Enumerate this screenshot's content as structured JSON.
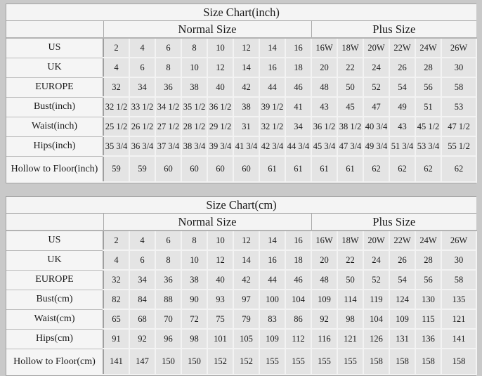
{
  "page_background": "#c9c9c9",
  "colors": {
    "label_cell_bg": "#f5f5f5",
    "data_cell_bg": "#e4e4e4",
    "grid_light": "#f3f3f3",
    "grid_gray": "#a9a9a9",
    "text": "#1a1a1a"
  },
  "chart_data": [
    {
      "type": "table",
      "title": "Size Chart(inch)",
      "group_headers": [
        {
          "label": "Normal Size",
          "span": 8
        },
        {
          "label": "Plus Size",
          "span": 6
        }
      ],
      "rows": [
        {
          "label": "US",
          "values": [
            "2",
            "4",
            "6",
            "8",
            "10",
            "12",
            "14",
            "16",
            "16W",
            "18W",
            "20W",
            "22W",
            "24W",
            "26W"
          ]
        },
        {
          "label": "UK",
          "values": [
            "4",
            "6",
            "8",
            "10",
            "12",
            "14",
            "16",
            "18",
            "20",
            "22",
            "24",
            "26",
            "28",
            "30"
          ]
        },
        {
          "label": "EUROPE",
          "values": [
            "32",
            "34",
            "36",
            "38",
            "40",
            "42",
            "44",
            "46",
            "48",
            "50",
            "52",
            "54",
            "56",
            "58"
          ]
        },
        {
          "label": "Bust(inch)",
          "values": [
            "32 1/2",
            "33 1/2",
            "34 1/2",
            "35 1/2",
            "36 1/2",
            "38",
            "39 1/2",
            "41",
            "43",
            "45",
            "47",
            "49",
            "51",
            "53"
          ]
        },
        {
          "label": "Waist(inch)",
          "values": [
            "25 1/2",
            "26 1/2",
            "27 1/2",
            "28 1/2",
            "29 1/2",
            "31",
            "32 1/2",
            "34",
            "36 1/2",
            "38 1/2",
            "40 3/4",
            "43",
            "45 1/2",
            "47 1/2"
          ]
        },
        {
          "label": "Hips(inch)",
          "values": [
            "35 3/4",
            "36 3/4",
            "37 3/4",
            "38 3/4",
            "39 3/4",
            "41 3/4",
            "42 3/4",
            "44 3/4",
            "45 3/4",
            "47 3/4",
            "49 3/4",
            "51 3/4",
            "53 3/4",
            "55 1/2"
          ]
        },
        {
          "label": "Hollow to Floor(inch)",
          "values": [
            "59",
            "59",
            "60",
            "60",
            "60",
            "60",
            "61",
            "61",
            "61",
            "61",
            "62",
            "62",
            "62",
            "62"
          ]
        }
      ]
    },
    {
      "type": "table",
      "title": "Size Chart(cm)",
      "group_headers": [
        {
          "label": "Normal Size",
          "span": 8
        },
        {
          "label": "Plus Size",
          "span": 6
        }
      ],
      "rows": [
        {
          "label": "US",
          "values": [
            "2",
            "4",
            "6",
            "8",
            "10",
            "12",
            "14",
            "16",
            "16W",
            "18W",
            "20W",
            "22W",
            "24W",
            "26W"
          ]
        },
        {
          "label": "UK",
          "values": [
            "4",
            "6",
            "8",
            "10",
            "12",
            "14",
            "16",
            "18",
            "20",
            "22",
            "24",
            "26",
            "28",
            "30"
          ]
        },
        {
          "label": "EUROPE",
          "values": [
            "32",
            "34",
            "36",
            "38",
            "40",
            "42",
            "44",
            "46",
            "48",
            "50",
            "52",
            "54",
            "56",
            "58"
          ]
        },
        {
          "label": "Bust(cm)",
          "values": [
            "82",
            "84",
            "88",
            "90",
            "93",
            "97",
            "100",
            "104",
            "109",
            "114",
            "119",
            "124",
            "130",
            "135"
          ]
        },
        {
          "label": "Waist(cm)",
          "values": [
            "65",
            "68",
            "70",
            "72",
            "75",
            "79",
            "83",
            "86",
            "92",
            "98",
            "104",
            "109",
            "115",
            "121"
          ]
        },
        {
          "label": "Hips(cm)",
          "values": [
            "91",
            "92",
            "96",
            "98",
            "101",
            "105",
            "109",
            "112",
            "116",
            "121",
            "126",
            "131",
            "136",
            "141"
          ]
        },
        {
          "label": "Hollow to Floor(cm)",
          "values": [
            "141",
            "147",
            "150",
            "150",
            "152",
            "152",
            "155",
            "155",
            "155",
            "155",
            "158",
            "158",
            "158",
            "158"
          ]
        }
      ]
    }
  ]
}
